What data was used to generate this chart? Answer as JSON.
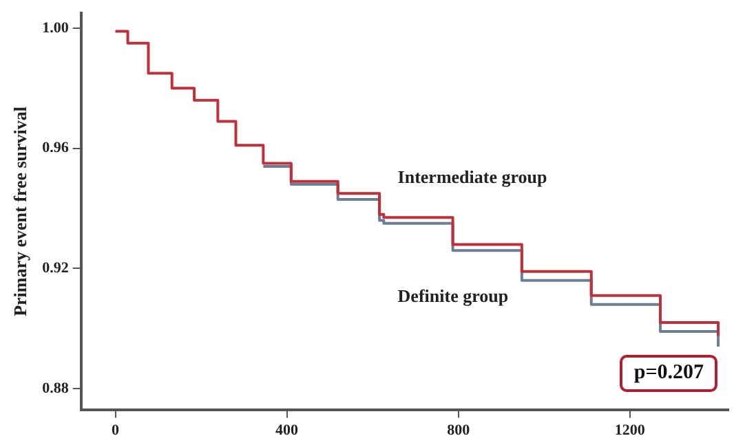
{
  "chart_data": {
    "type": "step",
    "ylabel": "Primary event free survival",
    "xlim": [
      -80,
      1430
    ],
    "xticks": [
      0,
      400,
      800,
      1200
    ],
    "ylim": [
      0.873,
      1.005
    ],
    "yticks": [
      0.88,
      0.92,
      0.96,
      {
        "value": 1.0,
        "label": "1.00"
      }
    ],
    "grid": false,
    "legend": false,
    "marker": "none",
    "line_style": "solid",
    "series": [
      {
        "name": "Intermediate group",
        "color": "#c0303a",
        "x": [
          0,
          29,
          77,
          132,
          184,
          239,
          281,
          345,
          410,
          519,
          616,
          626,
          787,
          948,
          1110,
          1271,
          1406
        ],
        "values": [
          0.999,
          0.995,
          0.985,
          0.98,
          0.976,
          0.969,
          0.961,
          0.955,
          0.949,
          0.945,
          0.938,
          0.937,
          0.928,
          0.919,
          0.911,
          0.902,
          0.8975
        ]
      },
      {
        "name": "Definite group",
        "color": "#6a7f96",
        "x": [
          345,
          410,
          519,
          616,
          626,
          787,
          948,
          1110,
          1271,
          1406
        ],
        "values": [
          0.954,
          0.948,
          0.943,
          0.936,
          0.935,
          0.926,
          0.916,
          0.908,
          0.899,
          0.894
        ]
      }
    ],
    "annotations": [
      "p=0.207"
    ]
  }
}
